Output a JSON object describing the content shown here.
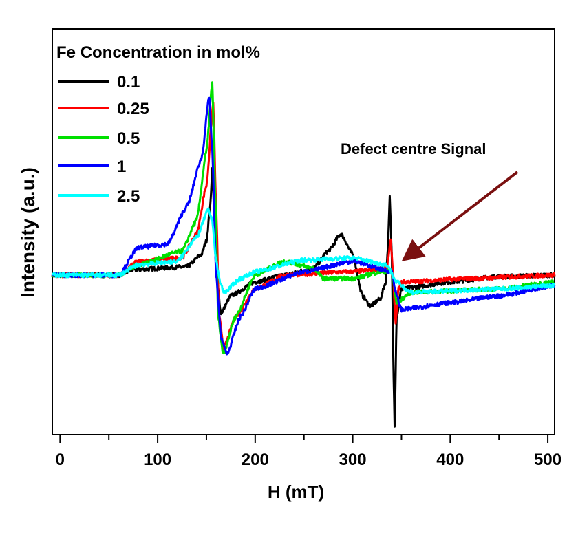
{
  "chart_data": {
    "type": "line",
    "title": "",
    "xlabel": "H (mT)",
    "ylabel": "Intensity (a.u.)",
    "xlim": [
      -8,
      507
    ],
    "ylim": [
      -2.32,
      3.58
    ],
    "xticks": [
      0,
      100,
      200,
      300,
      400,
      500
    ],
    "xtick_labels": [
      "0",
      "100",
      "200",
      "300",
      "400",
      "500"
    ],
    "y_tick_labels_shown": false,
    "grid": false,
    "legend": {
      "title": "Fe Concentration in mol%",
      "placement": "top-left"
    },
    "annotation": {
      "text": "Defect centre Signal",
      "arrow_color": "#7a1010",
      "arrow_target": [
        350,
        0.22
      ]
    },
    "series": [
      {
        "name": "0.1",
        "color": "#000000",
        "points": [
          [
            -8,
            0
          ],
          [
            60,
            0
          ],
          [
            75,
            0.08
          ],
          [
            130,
            0.12
          ],
          [
            145,
            0.3
          ],
          [
            150,
            0.5
          ],
          [
            154,
            1.0
          ],
          [
            156,
            1.55
          ],
          [
            158,
            0.9
          ],
          [
            161,
            -0.1
          ],
          [
            165,
            -0.55
          ],
          [
            175,
            -0.3
          ],
          [
            200,
            -0.1
          ],
          [
            230,
            0
          ],
          [
            260,
            0.1
          ],
          [
            275,
            0.35
          ],
          [
            288,
            0.6
          ],
          [
            300,
            0.3
          ],
          [
            310,
            -0.3
          ],
          [
            318,
            -0.45
          ],
          [
            328,
            -0.35
          ],
          [
            334,
            -0.1
          ],
          [
            336,
            0.4
          ],
          [
            338,
            1.13
          ],
          [
            340,
            0.3
          ],
          [
            342,
            -1.5
          ],
          [
            343,
            -2.2
          ],
          [
            345,
            -0.6
          ],
          [
            350,
            -0.2
          ],
          [
            400,
            -0.1
          ],
          [
            450,
            -0.02
          ],
          [
            507,
            0
          ]
        ]
      },
      {
        "name": "0.25",
        "color": "#ff0000",
        "points": [
          [
            -8,
            0
          ],
          [
            60,
            0
          ],
          [
            80,
            0.2
          ],
          [
            125,
            0.25
          ],
          [
            140,
            0.6
          ],
          [
            150,
            1.3
          ],
          [
            157,
            2.5
          ],
          [
            160,
            1.0
          ],
          [
            163,
            -0.6
          ],
          [
            168,
            -1.05
          ],
          [
            180,
            -0.6
          ],
          [
            200,
            -0.2
          ],
          [
            230,
            0
          ],
          [
            300,
            0.05
          ],
          [
            335,
            0.1
          ],
          [
            337,
            0.3
          ],
          [
            339,
            0.5
          ],
          [
            341,
            0.1
          ],
          [
            344,
            -0.7
          ],
          [
            347,
            -0.2
          ],
          [
            350,
            -0.1
          ],
          [
            420,
            -0.05
          ],
          [
            507,
            0
          ]
        ]
      },
      {
        "name": "0.5",
        "color": "#00e000",
        "points": [
          [
            -8,
            0
          ],
          [
            60,
            0
          ],
          [
            80,
            0.15
          ],
          [
            125,
            0.35
          ],
          [
            140,
            0.8
          ],
          [
            150,
            1.8
          ],
          [
            156,
            2.78
          ],
          [
            159,
            1.2
          ],
          [
            162,
            -0.6
          ],
          [
            167,
            -1.15
          ],
          [
            180,
            -0.6
          ],
          [
            200,
            0
          ],
          [
            230,
            0.2
          ],
          [
            260,
            0.1
          ],
          [
            270,
            -0.05
          ],
          [
            300,
            -0.05
          ],
          [
            330,
            0.05
          ],
          [
            340,
            0.05
          ],
          [
            345,
            -0.4
          ],
          [
            360,
            -0.25
          ],
          [
            450,
            -0.2
          ],
          [
            507,
            -0.1
          ]
        ]
      },
      {
        "name": "1",
        "color": "#0000ff",
        "points": [
          [
            -8,
            0
          ],
          [
            60,
            0
          ],
          [
            80,
            0.4
          ],
          [
            110,
            0.45
          ],
          [
            130,
            1.0
          ],
          [
            145,
            1.7
          ],
          [
            153,
            2.6
          ],
          [
            156,
            1.8
          ],
          [
            160,
            0
          ],
          [
            165,
            -0.9
          ],
          [
            171,
            -1.15
          ],
          [
            185,
            -0.6
          ],
          [
            200,
            -0.2
          ],
          [
            250,
            0.05
          ],
          [
            300,
            0.2
          ],
          [
            340,
            0.05
          ],
          [
            345,
            -0.3
          ],
          [
            350,
            -0.5
          ],
          [
            400,
            -0.4
          ],
          [
            450,
            -0.3
          ],
          [
            507,
            -0.15
          ]
        ]
      },
      {
        "name": "2.5",
        "color": "#00ffff",
        "points": [
          [
            -8,
            0
          ],
          [
            60,
            0
          ],
          [
            80,
            0.15
          ],
          [
            120,
            0.2
          ],
          [
            140,
            0.55
          ],
          [
            152,
            0.95
          ],
          [
            156,
            0.8
          ],
          [
            160,
            0.2
          ],
          [
            164,
            -0.1
          ],
          [
            168,
            -0.25
          ],
          [
            185,
            -0.05
          ],
          [
            200,
            0.05
          ],
          [
            250,
            0.22
          ],
          [
            300,
            0.25
          ],
          [
            335,
            0.15
          ],
          [
            345,
            -0.1
          ],
          [
            360,
            -0.25
          ],
          [
            450,
            -0.2
          ],
          [
            507,
            -0.15
          ]
        ]
      }
    ]
  }
}
